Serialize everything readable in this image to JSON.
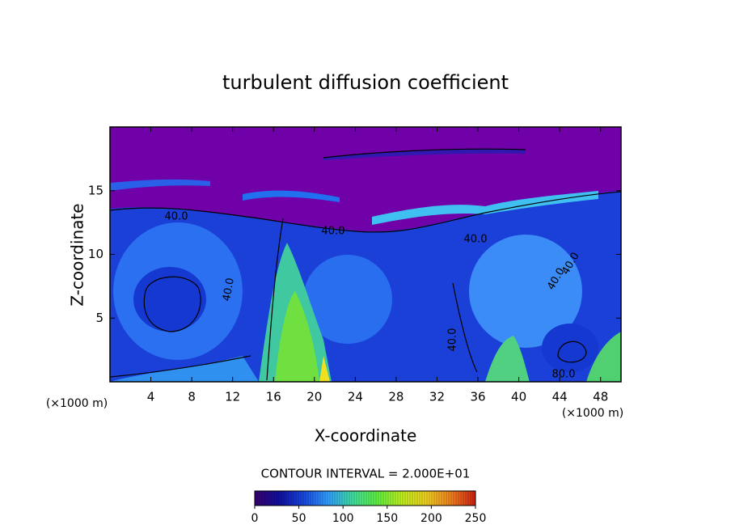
{
  "chart_data": {
    "type": "contour",
    "title": "turbulent diffusion coefficient",
    "x_label": "X-coordinate",
    "y_label": "Z-coordinate",
    "x_unit_left": "(×1000 m)",
    "x_unit_right": "(×1000 m)",
    "xlim": [
      0,
      50
    ],
    "xticks": [
      4,
      8,
      12,
      16,
      20,
      24,
      28,
      32,
      36,
      40,
      44,
      48
    ],
    "ylim": [
      0,
      20
    ],
    "yticks": [
      5,
      10,
      15
    ],
    "contour_interval_label": "CONTOUR INTERVAL = 2.000E+01",
    "contour_labels": [
      "40.0",
      "40.0",
      "40.0",
      "40.0",
      "40.0",
      "40.0",
      "40.0",
      "80.0"
    ],
    "colorbar": {
      "lim": [
        0,
        250
      ],
      "ticks": [
        0,
        50,
        100,
        150,
        200,
        250
      ],
      "colors": [
        "#3a0070",
        "#1010a0",
        "#1848e0",
        "#30a0ff",
        "#40e0a0",
        "#60f040",
        "#c0f020",
        "#f0d020",
        "#f08020",
        "#d02010"
      ]
    }
  }
}
